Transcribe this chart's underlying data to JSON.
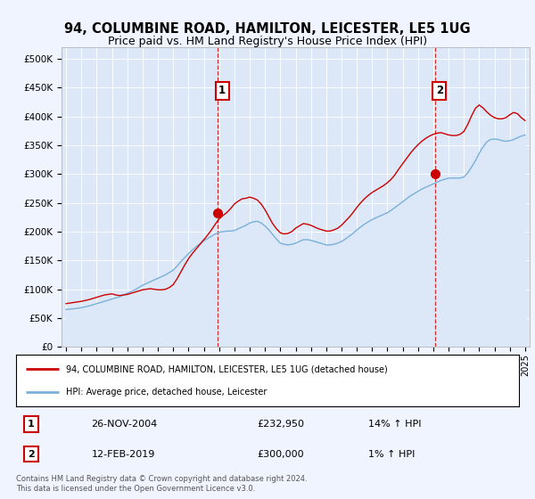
{
  "title": "94, COLUMBINE ROAD, HAMILTON, LEICESTER, LE5 1UG",
  "subtitle": "Price paid vs. HM Land Registry's House Price Index (HPI)",
  "title_fontsize": 10.5,
  "subtitle_fontsize": 9,
  "ylabel_ticks": [
    "£0",
    "£50K",
    "£100K",
    "£150K",
    "£200K",
    "£250K",
    "£300K",
    "£350K",
    "£400K",
    "£450K",
    "£500K"
  ],
  "ytick_values": [
    0,
    50000,
    100000,
    150000,
    200000,
    250000,
    300000,
    350000,
    400000,
    450000,
    500000
  ],
  "ylim": [
    0,
    520000
  ],
  "xlim_start": 1994.7,
  "xlim_end": 2025.3,
  "bg_color": "#f0f4ff",
  "chart_bg_color": "#dce8f8",
  "grid_color": "#ffffff",
  "red_line_color": "#cc0000",
  "blue_line_color": "#7ab0d8",
  "blue_fill_color": "#dce8f8",
  "marker1_x": 2004.9,
  "marker1_y": 232950,
  "marker2_x": 2019.1,
  "marker2_y": 300000,
  "legend_label1": "94, COLUMBINE ROAD, HAMILTON, LEICESTER, LE5 1UG (detached house)",
  "legend_label2": "HPI: Average price, detached house, Leicester",
  "table_row1": [
    "1",
    "26-NOV-2004",
    "£232,950",
    "14% ↑ HPI"
  ],
  "table_row2": [
    "2",
    "12-FEB-2019",
    "£300,000",
    "1% ↑ HPI"
  ],
  "footer": "Contains HM Land Registry data © Crown copyright and database right 2024.\nThis data is licensed under the Open Government Licence v3.0.",
  "hpi_x": [
    1995.0,
    1995.25,
    1995.5,
    1995.75,
    1996.0,
    1996.25,
    1996.5,
    1996.75,
    1997.0,
    1997.25,
    1997.5,
    1997.75,
    1998.0,
    1998.25,
    1998.5,
    1998.75,
    1999.0,
    1999.25,
    1999.5,
    1999.75,
    2000.0,
    2000.25,
    2000.5,
    2000.75,
    2001.0,
    2001.25,
    2001.5,
    2001.75,
    2002.0,
    2002.25,
    2002.5,
    2002.75,
    2003.0,
    2003.25,
    2003.5,
    2003.75,
    2004.0,
    2004.25,
    2004.5,
    2004.75,
    2005.0,
    2005.25,
    2005.5,
    2005.75,
    2006.0,
    2006.25,
    2006.5,
    2006.75,
    2007.0,
    2007.25,
    2007.5,
    2007.75,
    2008.0,
    2008.25,
    2008.5,
    2008.75,
    2009.0,
    2009.25,
    2009.5,
    2009.75,
    2010.0,
    2010.25,
    2010.5,
    2010.75,
    2011.0,
    2011.25,
    2011.5,
    2011.75,
    2012.0,
    2012.25,
    2012.5,
    2012.75,
    2013.0,
    2013.25,
    2013.5,
    2013.75,
    2014.0,
    2014.25,
    2014.5,
    2014.75,
    2015.0,
    2015.25,
    2015.5,
    2015.75,
    2016.0,
    2016.25,
    2016.5,
    2016.75,
    2017.0,
    2017.25,
    2017.5,
    2017.75,
    2018.0,
    2018.25,
    2018.5,
    2018.75,
    2019.0,
    2019.25,
    2019.5,
    2019.75,
    2020.0,
    2020.25,
    2020.5,
    2020.75,
    2021.0,
    2021.25,
    2021.5,
    2021.75,
    2022.0,
    2022.25,
    2022.5,
    2022.75,
    2023.0,
    2023.25,
    2023.5,
    2023.75,
    2024.0,
    2024.25,
    2024.5,
    2024.75,
    2025.0
  ],
  "hpi_y": [
    65000,
    65500,
    66000,
    67000,
    68000,
    69500,
    71000,
    73000,
    75000,
    77000,
    79000,
    81000,
    83000,
    85000,
    87000,
    90000,
    93000,
    96000,
    99000,
    103000,
    107000,
    110000,
    113000,
    116000,
    119000,
    122000,
    125000,
    129000,
    133000,
    140000,
    148000,
    155000,
    162000,
    168000,
    174000,
    179000,
    184000,
    188000,
    192000,
    196000,
    199000,
    200000,
    201000,
    201000,
    202000,
    205000,
    208000,
    211000,
    215000,
    217000,
    218000,
    215000,
    210000,
    203000,
    195000,
    187000,
    180000,
    178000,
    177000,
    178000,
    180000,
    183000,
    186000,
    186000,
    185000,
    183000,
    181000,
    179000,
    177000,
    177000,
    178000,
    180000,
    183000,
    187000,
    192000,
    197000,
    203000,
    208000,
    213000,
    217000,
    221000,
    224000,
    227000,
    230000,
    233000,
    237000,
    242000,
    247000,
    252000,
    257000,
    262000,
    266000,
    270000,
    274000,
    277000,
    280000,
    283000,
    286000,
    289000,
    291000,
    293000,
    293000,
    293000,
    293000,
    295000,
    302000,
    312000,
    323000,
    336000,
    347000,
    356000,
    360000,
    361000,
    360000,
    358000,
    357000,
    358000,
    360000,
    363000,
    366000,
    368000
  ],
  "red_x": [
    1995.0,
    1995.25,
    1995.5,
    1995.75,
    1996.0,
    1996.25,
    1996.5,
    1996.75,
    1997.0,
    1997.25,
    1997.5,
    1997.75,
    1998.0,
    1998.25,
    1998.5,
    1998.75,
    1999.0,
    1999.25,
    1999.5,
    1999.75,
    2000.0,
    2000.25,
    2000.5,
    2000.75,
    2001.0,
    2001.25,
    2001.5,
    2001.75,
    2002.0,
    2002.25,
    2002.5,
    2002.75,
    2003.0,
    2003.25,
    2003.5,
    2003.75,
    2004.0,
    2004.25,
    2004.5,
    2004.75,
    2005.0,
    2005.25,
    2005.5,
    2005.75,
    2006.0,
    2006.25,
    2006.5,
    2006.75,
    2007.0,
    2007.25,
    2007.5,
    2007.75,
    2008.0,
    2008.25,
    2008.5,
    2008.75,
    2009.0,
    2009.25,
    2009.5,
    2009.75,
    2010.0,
    2010.25,
    2010.5,
    2010.75,
    2011.0,
    2011.25,
    2011.5,
    2011.75,
    2012.0,
    2012.25,
    2012.5,
    2012.75,
    2013.0,
    2013.25,
    2013.5,
    2013.75,
    2014.0,
    2014.25,
    2014.5,
    2014.75,
    2015.0,
    2015.25,
    2015.5,
    2015.75,
    2016.0,
    2016.25,
    2016.5,
    2016.75,
    2017.0,
    2017.25,
    2017.5,
    2017.75,
    2018.0,
    2018.25,
    2018.5,
    2018.75,
    2019.0,
    2019.25,
    2019.5,
    2019.75,
    2020.0,
    2020.25,
    2020.5,
    2020.75,
    2021.0,
    2021.25,
    2021.5,
    2021.75,
    2022.0,
    2022.25,
    2022.5,
    2022.75,
    2023.0,
    2023.25,
    2023.5,
    2023.75,
    2024.0,
    2024.25,
    2024.5,
    2024.75,
    2025.0
  ],
  "red_y": [
    75000,
    76000,
    77000,
    78000,
    79000,
    80500,
    82000,
    84000,
    86000,
    88000,
    90000,
    91000,
    92000,
    90000,
    89000,
    90000,
    91000,
    93000,
    95000,
    97000,
    99000,
    100000,
    101000,
    100000,
    99000,
    99000,
    100000,
    103000,
    108000,
    118000,
    130000,
    142000,
    153000,
    162000,
    170000,
    178000,
    186000,
    194000,
    203000,
    213000,
    222000,
    228000,
    233000,
    240000,
    248000,
    253000,
    257000,
    258000,
    260000,
    258000,
    255000,
    248000,
    238000,
    226000,
    214000,
    205000,
    198000,
    196000,
    197000,
    200000,
    206000,
    210000,
    214000,
    213000,
    211000,
    208000,
    205000,
    203000,
    201000,
    201000,
    203000,
    206000,
    211000,
    218000,
    225000,
    233000,
    242000,
    250000,
    257000,
    263000,
    268000,
    272000,
    276000,
    280000,
    285000,
    291000,
    299000,
    309000,
    318000,
    327000,
    336000,
    344000,
    351000,
    357000,
    362000,
    366000,
    369000,
    371000,
    372000,
    370000,
    368000,
    367000,
    367000,
    369000,
    374000,
    386000,
    401000,
    414000,
    420000,
    415000,
    408000,
    402000,
    398000,
    396000,
    396000,
    398000,
    403000,
    407000,
    405000,
    398000,
    393000
  ],
  "xtick_years": [
    1995,
    1996,
    1997,
    1998,
    1999,
    2000,
    2001,
    2002,
    2003,
    2004,
    2005,
    2006,
    2007,
    2008,
    2009,
    2010,
    2011,
    2012,
    2013,
    2014,
    2015,
    2016,
    2017,
    2018,
    2019,
    2020,
    2021,
    2022,
    2023,
    2024,
    2025
  ]
}
